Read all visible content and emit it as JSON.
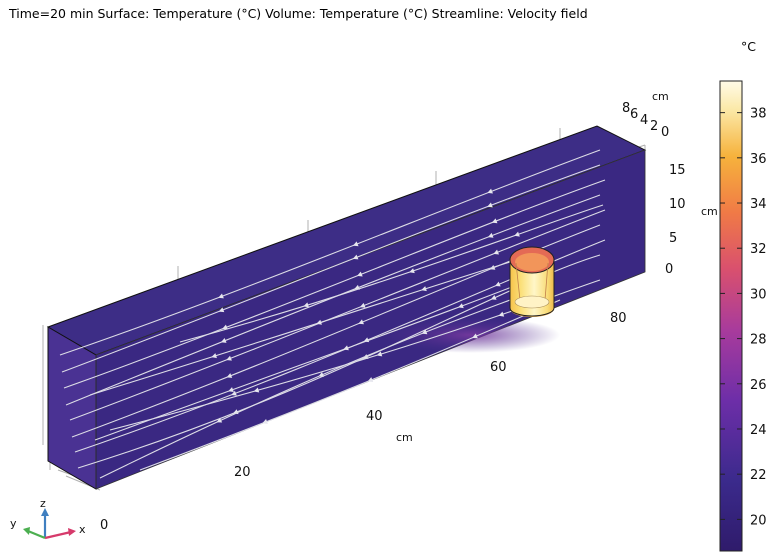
{
  "title": "Time=20 min  Surface: Temperature (°C)  Volume: Temperature (°C)  Streamline: Velocity field",
  "colorbar": {
    "unit": "°C",
    "ticks": [
      "38",
      "36",
      "34",
      "32",
      "30",
      "28",
      "26",
      "24",
      "22",
      "20"
    ],
    "range": [
      18.6,
      39.4
    ],
    "colors": [
      "#2f1b6b",
      "#3b2a8c",
      "#6d2ea8",
      "#a83b9c",
      "#d9506e",
      "#f07a46",
      "#f6b23c",
      "#fbe9a8",
      "#fffbe8"
    ]
  },
  "axes": {
    "x": {
      "label": "cm",
      "ticks": [
        "0",
        "20",
        "40",
        "60",
        "80"
      ]
    },
    "y": {
      "label": "cm",
      "ticks": [
        "8",
        "6",
        "4",
        "2",
        "0"
      ]
    },
    "z": {
      "label": "cm",
      "ticks": [
        "15",
        "10",
        "5",
        "0"
      ]
    }
  },
  "triad": {
    "x": "x",
    "y": "y",
    "z": "z"
  },
  "chart_data": {
    "type": "3d-surface",
    "time": "20 min",
    "surface_quantity": "Temperature (°C)",
    "volume_quantity": "Temperature (°C)",
    "streamline_quantity": "Velocity field",
    "x_ticks_cm": [
      0,
      20,
      40,
      60,
      80
    ],
    "y_ticks_cm": [
      0,
      2,
      4,
      6,
      8
    ],
    "z_ticks_cm": [
      0,
      5,
      10,
      15
    ],
    "color_range_C": [
      18.6,
      39.4
    ],
    "colorbar_ticks_C": [
      20,
      22,
      24,
      26,
      28,
      30,
      32,
      34,
      36,
      38
    ],
    "background_temperature_C": 20,
    "heated_cylinder_temperature_C": [
      30,
      39
    ]
  }
}
